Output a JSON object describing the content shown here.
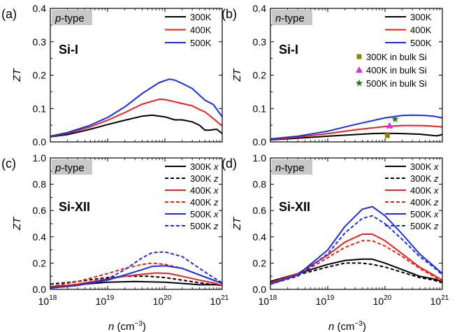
{
  "figure": {
    "x_axis_label_main": "n",
    "x_axis_label_unit": "(cm",
    "x_axis_label_exp": "−3",
    "x_axis_label_close": ")"
  },
  "chart_data": [
    {
      "id": "a",
      "type": "line",
      "panel_label": "(a)",
      "doping_tag": "p-type",
      "doping_letter": "p",
      "doping_suffix": "-type",
      "material": "Si-I",
      "ylabel": "ZT",
      "xlabel": "n (cm−3)",
      "xscale": "log",
      "xlim": [
        1e+18,
        1e+21
      ],
      "ylim": [
        0,
        0.4
      ],
      "yticks": [
        "0.0",
        "0.1",
        "0.2",
        "0.3",
        "0.4"
      ],
      "xticks": [
        {
          "base": "10",
          "exp": "18"
        },
        {
          "base": "10",
          "exp": "19"
        },
        {
          "base": "10",
          "exp": "20"
        },
        {
          "base": "10",
          "exp": "21"
        }
      ],
      "series": [
        {
          "name": "300K",
          "color": "#000000",
          "dash": false,
          "x": [
            1e+18,
            2e+18,
            5e+18,
            1e+19,
            2e+19,
            4e+19,
            6e+19,
            1e+20,
            1.5e+20,
            2e+20,
            3e+20,
            4e+20,
            5e+20,
            6e+20,
            8e+20,
            1e+21
          ],
          "y": [
            0.015,
            0.022,
            0.038,
            0.052,
            0.065,
            0.077,
            0.08,
            0.075,
            0.066,
            0.066,
            0.06,
            0.05,
            0.035,
            0.035,
            0.038,
            0.025
          ]
        },
        {
          "name": "400K",
          "color": "#e8231a",
          "dash": false,
          "x": [
            1e+18,
            2e+18,
            5e+18,
            1e+19,
            2e+19,
            4e+19,
            8e+19,
            1e+20,
            1.5e+20,
            2e+20,
            3e+20,
            4e+20,
            5e+20,
            7e+20,
            1e+21
          ],
          "y": [
            0.016,
            0.026,
            0.045,
            0.065,
            0.088,
            0.113,
            0.128,
            0.127,
            0.12,
            0.115,
            0.108,
            0.097,
            0.09,
            0.07,
            0.048
          ]
        },
        {
          "name": "500K",
          "color": "#1c2ede",
          "dash": false,
          "x": [
            1e+18,
            2e+18,
            5e+18,
            1e+19,
            2e+19,
            4e+19,
            8e+19,
            1.2e+20,
            1.5e+20,
            2e+20,
            3e+20,
            4e+20,
            5e+20,
            7e+20,
            1e+21
          ],
          "y": [
            0.017,
            0.028,
            0.05,
            0.073,
            0.105,
            0.145,
            0.178,
            0.188,
            0.185,
            0.175,
            0.16,
            0.14,
            0.125,
            0.112,
            0.075
          ]
        }
      ],
      "markers": []
    },
    {
      "id": "b",
      "type": "line",
      "panel_label": "(b)",
      "doping_tag": "n-type",
      "doping_letter": "n",
      "doping_suffix": "-type",
      "material": "Si-I",
      "ylabel": "ZT",
      "xlabel": "n (cm−3)",
      "xscale": "log",
      "xlim": [
        1e+18,
        1e+21
      ],
      "ylim": [
        0,
        0.4
      ],
      "yticks": [
        "0.0",
        "0.1",
        "0.2",
        "0.3",
        "0.4"
      ],
      "xticks": [
        {
          "base": "10",
          "exp": "18"
        },
        {
          "base": "10",
          "exp": "19"
        },
        {
          "base": "10",
          "exp": "20"
        },
        {
          "base": "10",
          "exp": "21"
        }
      ],
      "series": [
        {
          "name": "300K",
          "color": "#000000",
          "dash": false,
          "x": [
            1e+18,
            3e+18,
            1e+19,
            3e+19,
            6e+19,
            1e+20,
            2e+20,
            4e+20,
            6e+20,
            8e+20,
            1e+21
          ],
          "y": [
            0.006,
            0.011,
            0.017,
            0.022,
            0.025,
            0.026,
            0.025,
            0.023,
            0.02,
            0.018,
            0.022
          ]
        },
        {
          "name": "400K",
          "color": "#e8231a",
          "dash": false,
          "x": [
            1e+18,
            3e+18,
            1e+19,
            3e+19,
            1e+20,
            2e+20,
            4e+20,
            6e+20,
            8e+20,
            1e+21
          ],
          "y": [
            0.007,
            0.014,
            0.025,
            0.036,
            0.046,
            0.049,
            0.049,
            0.048,
            0.046,
            0.045
          ]
        },
        {
          "name": "500K",
          "color": "#1c2ede",
          "dash": false,
          "x": [
            1e+18,
            3e+18,
            1e+19,
            3e+19,
            1e+20,
            2e+20,
            3e+20,
            5e+20,
            7e+20,
            1e+21
          ],
          "y": [
            0.009,
            0.017,
            0.032,
            0.052,
            0.072,
            0.079,
            0.08,
            0.079,
            0.077,
            0.072
          ]
        }
      ],
      "markers": [
        {
          "name": "300K in bulk Si",
          "color": "#8a8a00",
          "shape": "square",
          "x": 1.1e+20,
          "y": 0.019
        },
        {
          "name": "400K in bulk Si",
          "color": "#ee22ee",
          "shape": "triangle",
          "x": 1.2e+20,
          "y": 0.049
        },
        {
          "name": "500K in bulk Si",
          "color": "#1d7a1d",
          "shape": "star",
          "x": 1.5e+20,
          "y": 0.068
        }
      ]
    },
    {
      "id": "c",
      "type": "line",
      "panel_label": "(c)",
      "doping_tag": "p-type",
      "doping_letter": "p",
      "doping_suffix": "-type",
      "material": "Si-XII",
      "ylabel": "ZT",
      "xlabel": "n (cm−3)",
      "xscale": "log",
      "xlim": [
        1e+18,
        1e+21
      ],
      "ylim": [
        0,
        1.0
      ],
      "yticks": [
        "0.0",
        "0.2",
        "0.4",
        "0.6",
        "0.8",
        "1.0"
      ],
      "xticks": [
        {
          "base": "10",
          "exp": "18"
        },
        {
          "base": "10",
          "exp": "19"
        },
        {
          "base": "10",
          "exp": "20"
        },
        {
          "base": "10",
          "exp": "21"
        }
      ],
      "series": [
        {
          "name": "300K x",
          "color": "#000000",
          "dash": false,
          "x": [
            1e+18,
            3e+18,
            1e+19,
            3e+19,
            1e+20,
            2e+20,
            4e+20,
            6e+20,
            8e+20,
            1e+21
          ],
          "y": [
            0.02,
            0.035,
            0.055,
            0.06,
            0.055,
            0.045,
            0.035,
            0.035,
            0.035,
            0.03
          ]
        },
        {
          "name": "300K z",
          "color": "#000000",
          "dash": true,
          "x": [
            1e+18,
            3e+18,
            1e+19,
            2e+19,
            5e+19,
            1e+20,
            2e+20,
            4e+20,
            6e+20,
            1e+21
          ],
          "y": [
            0.04,
            0.06,
            0.09,
            0.1,
            0.1,
            0.09,
            0.07,
            0.05,
            0.04,
            0.03
          ]
        },
        {
          "name": "400K x",
          "color": "#e8231a",
          "dash": false,
          "x": [
            1e+18,
            3e+18,
            1e+19,
            2e+19,
            4e+19,
            7e+19,
            1.2e+20,
            2e+20,
            4e+20,
            7e+20,
            1e+21
          ],
          "y": [
            0.015,
            0.04,
            0.08,
            0.1,
            0.115,
            0.125,
            0.12,
            0.1,
            0.07,
            0.05,
            0.03
          ]
        },
        {
          "name": "400K z",
          "color": "#e8231a",
          "dash": true,
          "x": [
            1e+18,
            3e+18,
            1e+19,
            2e+19,
            4e+19,
            6e+19,
            1e+20,
            2e+20,
            4e+20,
            7e+20,
            1e+21
          ],
          "y": [
            0.02,
            0.06,
            0.12,
            0.16,
            0.19,
            0.2,
            0.19,
            0.16,
            0.11,
            0.07,
            0.045
          ]
        },
        {
          "name": "500K x",
          "color": "#1c2ede",
          "dash": false,
          "x": [
            1e+18,
            3e+18,
            1e+19,
            2e+19,
            4e+19,
            6e+19,
            1e+20,
            2e+20,
            4e+20,
            7e+20,
            1e+21
          ],
          "y": [
            0.01,
            0.03,
            0.07,
            0.11,
            0.15,
            0.175,
            0.18,
            0.16,
            0.11,
            0.07,
            0.045
          ]
        },
        {
          "name": "500K z",
          "color": "#1c2ede",
          "dash": true,
          "x": [
            1e+18,
            3e+18,
            1e+19,
            2e+19,
            4e+19,
            6e+19,
            1e+20,
            2e+20,
            4e+20,
            7e+20,
            1e+21
          ],
          "y": [
            0.01,
            0.03,
            0.08,
            0.15,
            0.24,
            0.28,
            0.285,
            0.25,
            0.16,
            0.09,
            0.05
          ]
        }
      ],
      "markers": []
    },
    {
      "id": "d",
      "type": "line",
      "panel_label": "(d)",
      "doping_tag": "n-type",
      "doping_letter": "n",
      "doping_suffix": "-type",
      "material": "Si-XII",
      "ylabel": "ZT",
      "xlabel": "n (cm−3)",
      "xscale": "log",
      "xlim": [
        1e+18,
        1e+21
      ],
      "ylim": [
        0,
        1.0
      ],
      "yticks": [
        "0.0",
        "0.2",
        "0.4",
        "0.6",
        "0.8",
        "1.0"
      ],
      "xticks": [
        {
          "base": "10",
          "exp": "18"
        },
        {
          "base": "10",
          "exp": "19"
        },
        {
          "base": "10",
          "exp": "20"
        },
        {
          "base": "10",
          "exp": "21"
        }
      ],
      "series": [
        {
          "name": "300K x",
          "color": "#000000",
          "dash": false,
          "x": [
            1e+18,
            3e+18,
            1e+19,
            2e+19,
            4e+19,
            6e+19,
            1e+20,
            2e+20,
            4e+20,
            7e+20,
            1e+21
          ],
          "y": [
            0.06,
            0.12,
            0.19,
            0.22,
            0.23,
            0.23,
            0.2,
            0.15,
            0.1,
            0.08,
            0.06
          ]
        },
        {
          "name": "300K z",
          "color": "#000000",
          "dash": true,
          "x": [
            1e+18,
            3e+18,
            1e+19,
            2e+19,
            4e+19,
            6e+19,
            1e+20,
            2e+20,
            4e+20,
            7e+20,
            1e+21
          ],
          "y": [
            0.06,
            0.11,
            0.17,
            0.2,
            0.2,
            0.19,
            0.17,
            0.13,
            0.09,
            0.07,
            0.05
          ]
        },
        {
          "name": "400K x",
          "color": "#e8231a",
          "dash": false,
          "x": [
            1e+18,
            3e+18,
            1e+19,
            2e+19,
            4e+19,
            6e+19,
            1e+20,
            2e+20,
            4e+20,
            7e+20,
            1e+21
          ],
          "y": [
            0.05,
            0.12,
            0.26,
            0.36,
            0.42,
            0.42,
            0.37,
            0.27,
            0.17,
            0.11,
            0.07
          ]
        },
        {
          "name": "400K z",
          "color": "#e8231a",
          "dash": true,
          "x": [
            1e+18,
            3e+18,
            1e+19,
            2e+19,
            4e+19,
            6e+19,
            1e+20,
            2e+20,
            4e+20,
            7e+20,
            1e+21
          ],
          "y": [
            0.05,
            0.11,
            0.24,
            0.32,
            0.37,
            0.37,
            0.33,
            0.25,
            0.16,
            0.1,
            0.06
          ]
        },
        {
          "name": "500K x",
          "color": "#1c2ede",
          "dash": false,
          "x": [
            1e+18,
            3e+18,
            1e+19,
            2e+19,
            4e+19,
            6e+19,
            1e+20,
            2e+20,
            4e+20,
            7e+20,
            1e+21
          ],
          "y": [
            0.04,
            0.11,
            0.3,
            0.48,
            0.61,
            0.63,
            0.56,
            0.42,
            0.27,
            0.18,
            0.12
          ]
        },
        {
          "name": "500K z",
          "color": "#1c2ede",
          "dash": true,
          "x": [
            1e+18,
            3e+18,
            1e+19,
            2e+19,
            4e+19,
            6e+19,
            1e+20,
            2e+20,
            4e+20,
            7e+20,
            1e+21
          ],
          "y": [
            0.04,
            0.1,
            0.27,
            0.43,
            0.54,
            0.56,
            0.5,
            0.38,
            0.25,
            0.17,
            0.11
          ]
        }
      ],
      "markers": []
    }
  ]
}
